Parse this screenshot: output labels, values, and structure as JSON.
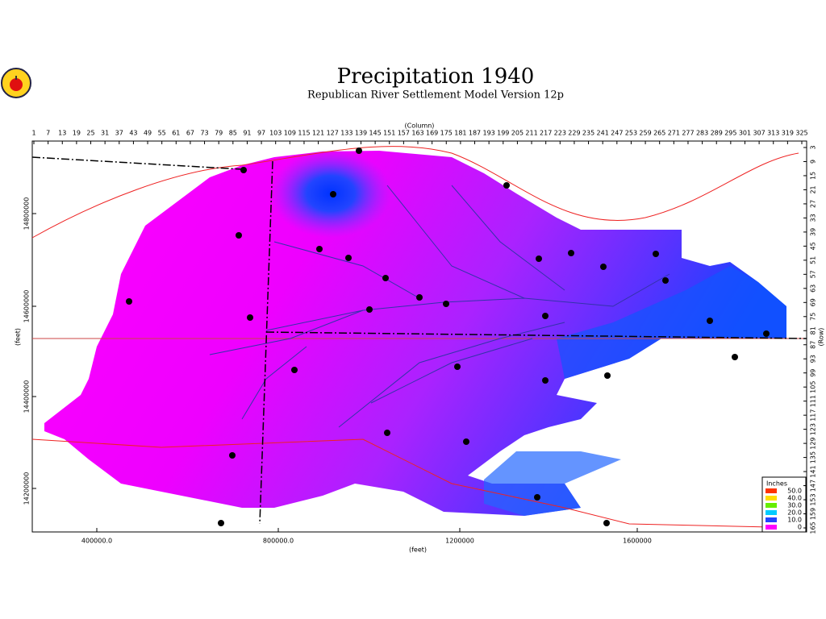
{
  "header": {
    "title": "Precipitation 1940",
    "subtitle": "Republican River Settlement Model Version 12p"
  },
  "map": {
    "column_axis": {
      "label": "(Column)",
      "ticks": [
        1,
        7,
        13,
        19,
        25,
        31,
        37,
        43,
        49,
        55,
        61,
        67,
        73,
        79,
        85,
        91,
        97,
        103,
        109,
        115,
        121,
        127,
        133,
        139,
        145,
        151,
        157,
        163,
        169,
        175,
        181,
        187,
        193,
        199,
        205,
        211,
        217,
        223,
        229,
        235,
        241,
        247,
        253,
        259,
        265,
        271,
        277,
        283,
        289,
        295,
        301,
        307,
        313,
        319,
        325
      ]
    },
    "row_axis": {
      "label": "(Row)",
      "ticks": [
        3,
        9,
        15,
        21,
        27,
        33,
        39,
        45,
        51,
        57,
        63,
        69,
        75,
        81,
        87,
        93,
        99,
        105,
        111,
        117,
        123,
        129,
        135,
        141,
        147,
        153,
        159,
        165
      ]
    },
    "northing_axis": {
      "label": "(feet)",
      "ticks": [
        14800000,
        14600000,
        14400000,
        14200000
      ]
    },
    "easting_axis": {
      "label": "(feet)",
      "ticks": [
        "400000.0",
        "800000.0",
        1200000,
        1600000
      ]
    },
    "legend": {
      "title": "Inches",
      "items": [
        {
          "label": "50.0",
          "color": "#ff3300"
        },
        {
          "label": "40.0",
          "color": "#ffdd00"
        },
        {
          "label": "30.0",
          "color": "#66ee00"
        },
        {
          "label": "20.0",
          "color": "#00ccff"
        },
        {
          "label": "10.0",
          "color": "#2244ff"
        },
        {
          "label": "0",
          "color": "#ff00ff"
        }
      ]
    }
  }
}
